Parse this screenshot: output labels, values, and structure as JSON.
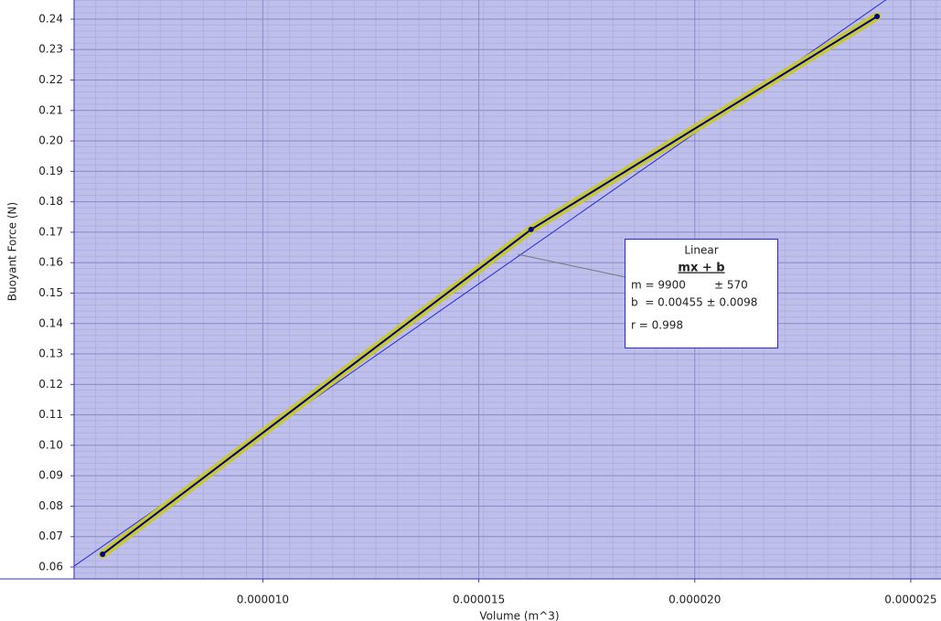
{
  "chart_data": {
    "type": "line",
    "x_label": "Volume (m^3)",
    "y_label": "Buoyant Force (N)",
    "series": [
      {
        "color": "#000080",
        "highlight": "#c8c832",
        "x": [
          6.29e-06,
          1.621e-05,
          2.422e-05
        ],
        "values": [
          0.0642,
          0.1709,
          0.2409
        ]
      }
    ],
    "fit": {
      "slope": 9900,
      "intercept": 0.00455,
      "color": "#2a2ad4"
    },
    "annotation": {
      "title": "Linear",
      "formula": "mx + b",
      "m_text": "m = 9900",
      "m_err": "± 570",
      "b_text": "b  = 0.00455 ± 0.0098",
      "r_text": "r = 0.998"
    },
    "xlim": [
      5.63e-06,
      2.57e-05
    ],
    "ylim": [
      0.0561,
      0.2463
    ],
    "xticks": [
      {
        "value": 1e-05,
        "label": "0.000010"
      },
      {
        "value": 1.5e-05,
        "label": "0.000015"
      },
      {
        "value": 2e-05,
        "label": "0.000020"
      },
      {
        "value": 2.5e-05,
        "label": "0.000025"
      }
    ],
    "yticks": [
      0.06,
      0.07,
      0.08,
      0.09,
      {
        "value": 0.1,
        "label": "0.10"
      },
      0.11,
      0.12,
      0.13,
      0.14,
      0.15,
      0.16,
      0.17,
      0.18,
      0.19,
      {
        "value": 0.2,
        "label": "0.20"
      },
      0.21,
      0.22,
      0.23,
      0.24
    ],
    "grid": true,
    "background": "#bfbfec"
  }
}
